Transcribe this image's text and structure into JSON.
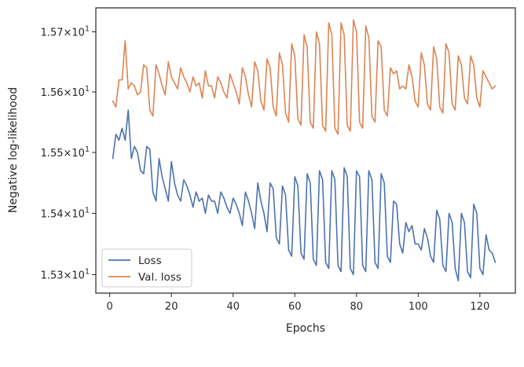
{
  "chart_data": {
    "type": "line",
    "title": "",
    "xlabel": "Epochs",
    "ylabel": "Negative log-likelihood",
    "xlim": [
      -4.5,
      131.5
    ],
    "ylim": [
      15.27,
      15.74
    ],
    "yscale": "log",
    "grid": false,
    "legend_position": "lower-left",
    "x_ticks": [
      0,
      20,
      40,
      60,
      80,
      100,
      120
    ],
    "x_tick_labels": [
      "0",
      "20",
      "40",
      "60",
      "80",
      "100",
      "120"
    ],
    "y_ticks": [
      15.3,
      15.4,
      15.5,
      15.6,
      15.7
    ],
    "y_tick_labels": [
      {
        "base": "1.53",
        "exp": "1"
      },
      {
        "base": "1.54",
        "exp": "1"
      },
      {
        "base": "1.55",
        "exp": "1"
      },
      {
        "base": "1.56",
        "exp": "1"
      },
      {
        "base": "1.57",
        "exp": "1"
      }
    ],
    "x_start": 1,
    "x_step": 1,
    "series": [
      {
        "name": "Loss",
        "color": "#4c72b0",
        "values": [
          15.49,
          15.53,
          15.52,
          15.54,
          15.52,
          15.57,
          15.49,
          15.51,
          15.5,
          15.47,
          15.465,
          15.51,
          15.505,
          15.435,
          15.42,
          15.49,
          15.46,
          15.44,
          15.42,
          15.485,
          15.45,
          15.43,
          15.42,
          15.455,
          15.445,
          15.43,
          15.41,
          15.435,
          15.42,
          15.425,
          15.4,
          15.43,
          15.42,
          15.42,
          15.4,
          15.435,
          15.425,
          15.41,
          15.4,
          15.425,
          15.415,
          15.4,
          15.38,
          15.435,
          15.42,
          15.4,
          15.375,
          15.45,
          15.42,
          15.4,
          15.37,
          15.45,
          15.44,
          15.36,
          15.35,
          15.445,
          15.43,
          15.34,
          15.33,
          15.46,
          15.445,
          15.335,
          15.325,
          15.465,
          15.45,
          15.325,
          15.315,
          15.47,
          15.455,
          15.32,
          15.31,
          15.47,
          15.455,
          15.315,
          15.305,
          15.475,
          15.46,
          15.31,
          15.3,
          15.47,
          15.46,
          15.315,
          15.305,
          15.47,
          15.455,
          15.32,
          15.31,
          15.465,
          15.45,
          15.33,
          15.32,
          15.42,
          15.415,
          15.35,
          15.335,
          15.385,
          15.37,
          15.38,
          15.35,
          15.35,
          15.34,
          15.375,
          15.36,
          15.33,
          15.32,
          15.405,
          15.39,
          15.315,
          15.305,
          15.4,
          15.385,
          15.31,
          15.29,
          15.4,
          15.385,
          15.305,
          15.295,
          15.415,
          15.4,
          15.31,
          15.3,
          15.365,
          15.34,
          15.335,
          15.32
        ]
      },
      {
        "name": "Val. loss",
        "color": "#dd8452",
        "values": [
          15.585,
          15.575,
          15.62,
          15.62,
          15.685,
          15.605,
          15.615,
          15.61,
          15.595,
          15.6,
          15.645,
          15.64,
          15.57,
          15.56,
          15.645,
          15.63,
          15.61,
          15.595,
          15.65,
          15.625,
          15.615,
          15.605,
          15.64,
          15.625,
          15.615,
          15.6,
          15.625,
          15.61,
          15.615,
          15.59,
          15.635,
          15.61,
          15.61,
          15.59,
          15.625,
          15.615,
          15.6,
          15.59,
          15.63,
          15.615,
          15.6,
          15.58,
          15.64,
          15.625,
          15.595,
          15.575,
          15.65,
          15.635,
          15.585,
          15.57,
          15.655,
          15.64,
          15.575,
          15.56,
          15.665,
          15.645,
          15.565,
          15.55,
          15.68,
          15.66,
          15.555,
          15.545,
          15.695,
          15.675,
          15.55,
          15.54,
          15.7,
          15.68,
          15.545,
          15.535,
          15.715,
          15.695,
          15.54,
          15.53,
          15.715,
          15.695,
          15.545,
          15.535,
          15.72,
          15.7,
          15.55,
          15.54,
          15.71,
          15.69,
          15.56,
          15.55,
          15.685,
          15.675,
          15.57,
          15.56,
          15.64,
          15.63,
          15.635,
          15.605,
          15.61,
          15.605,
          15.645,
          15.625,
          15.585,
          15.575,
          15.665,
          15.645,
          15.58,
          15.57,
          15.675,
          15.655,
          15.575,
          15.565,
          15.68,
          15.665,
          15.58,
          15.57,
          15.66,
          15.645,
          15.59,
          15.58,
          15.66,
          15.645,
          15.59,
          15.575,
          15.635,
          15.625,
          15.615,
          15.605,
          15.61
        ]
      }
    ]
  }
}
